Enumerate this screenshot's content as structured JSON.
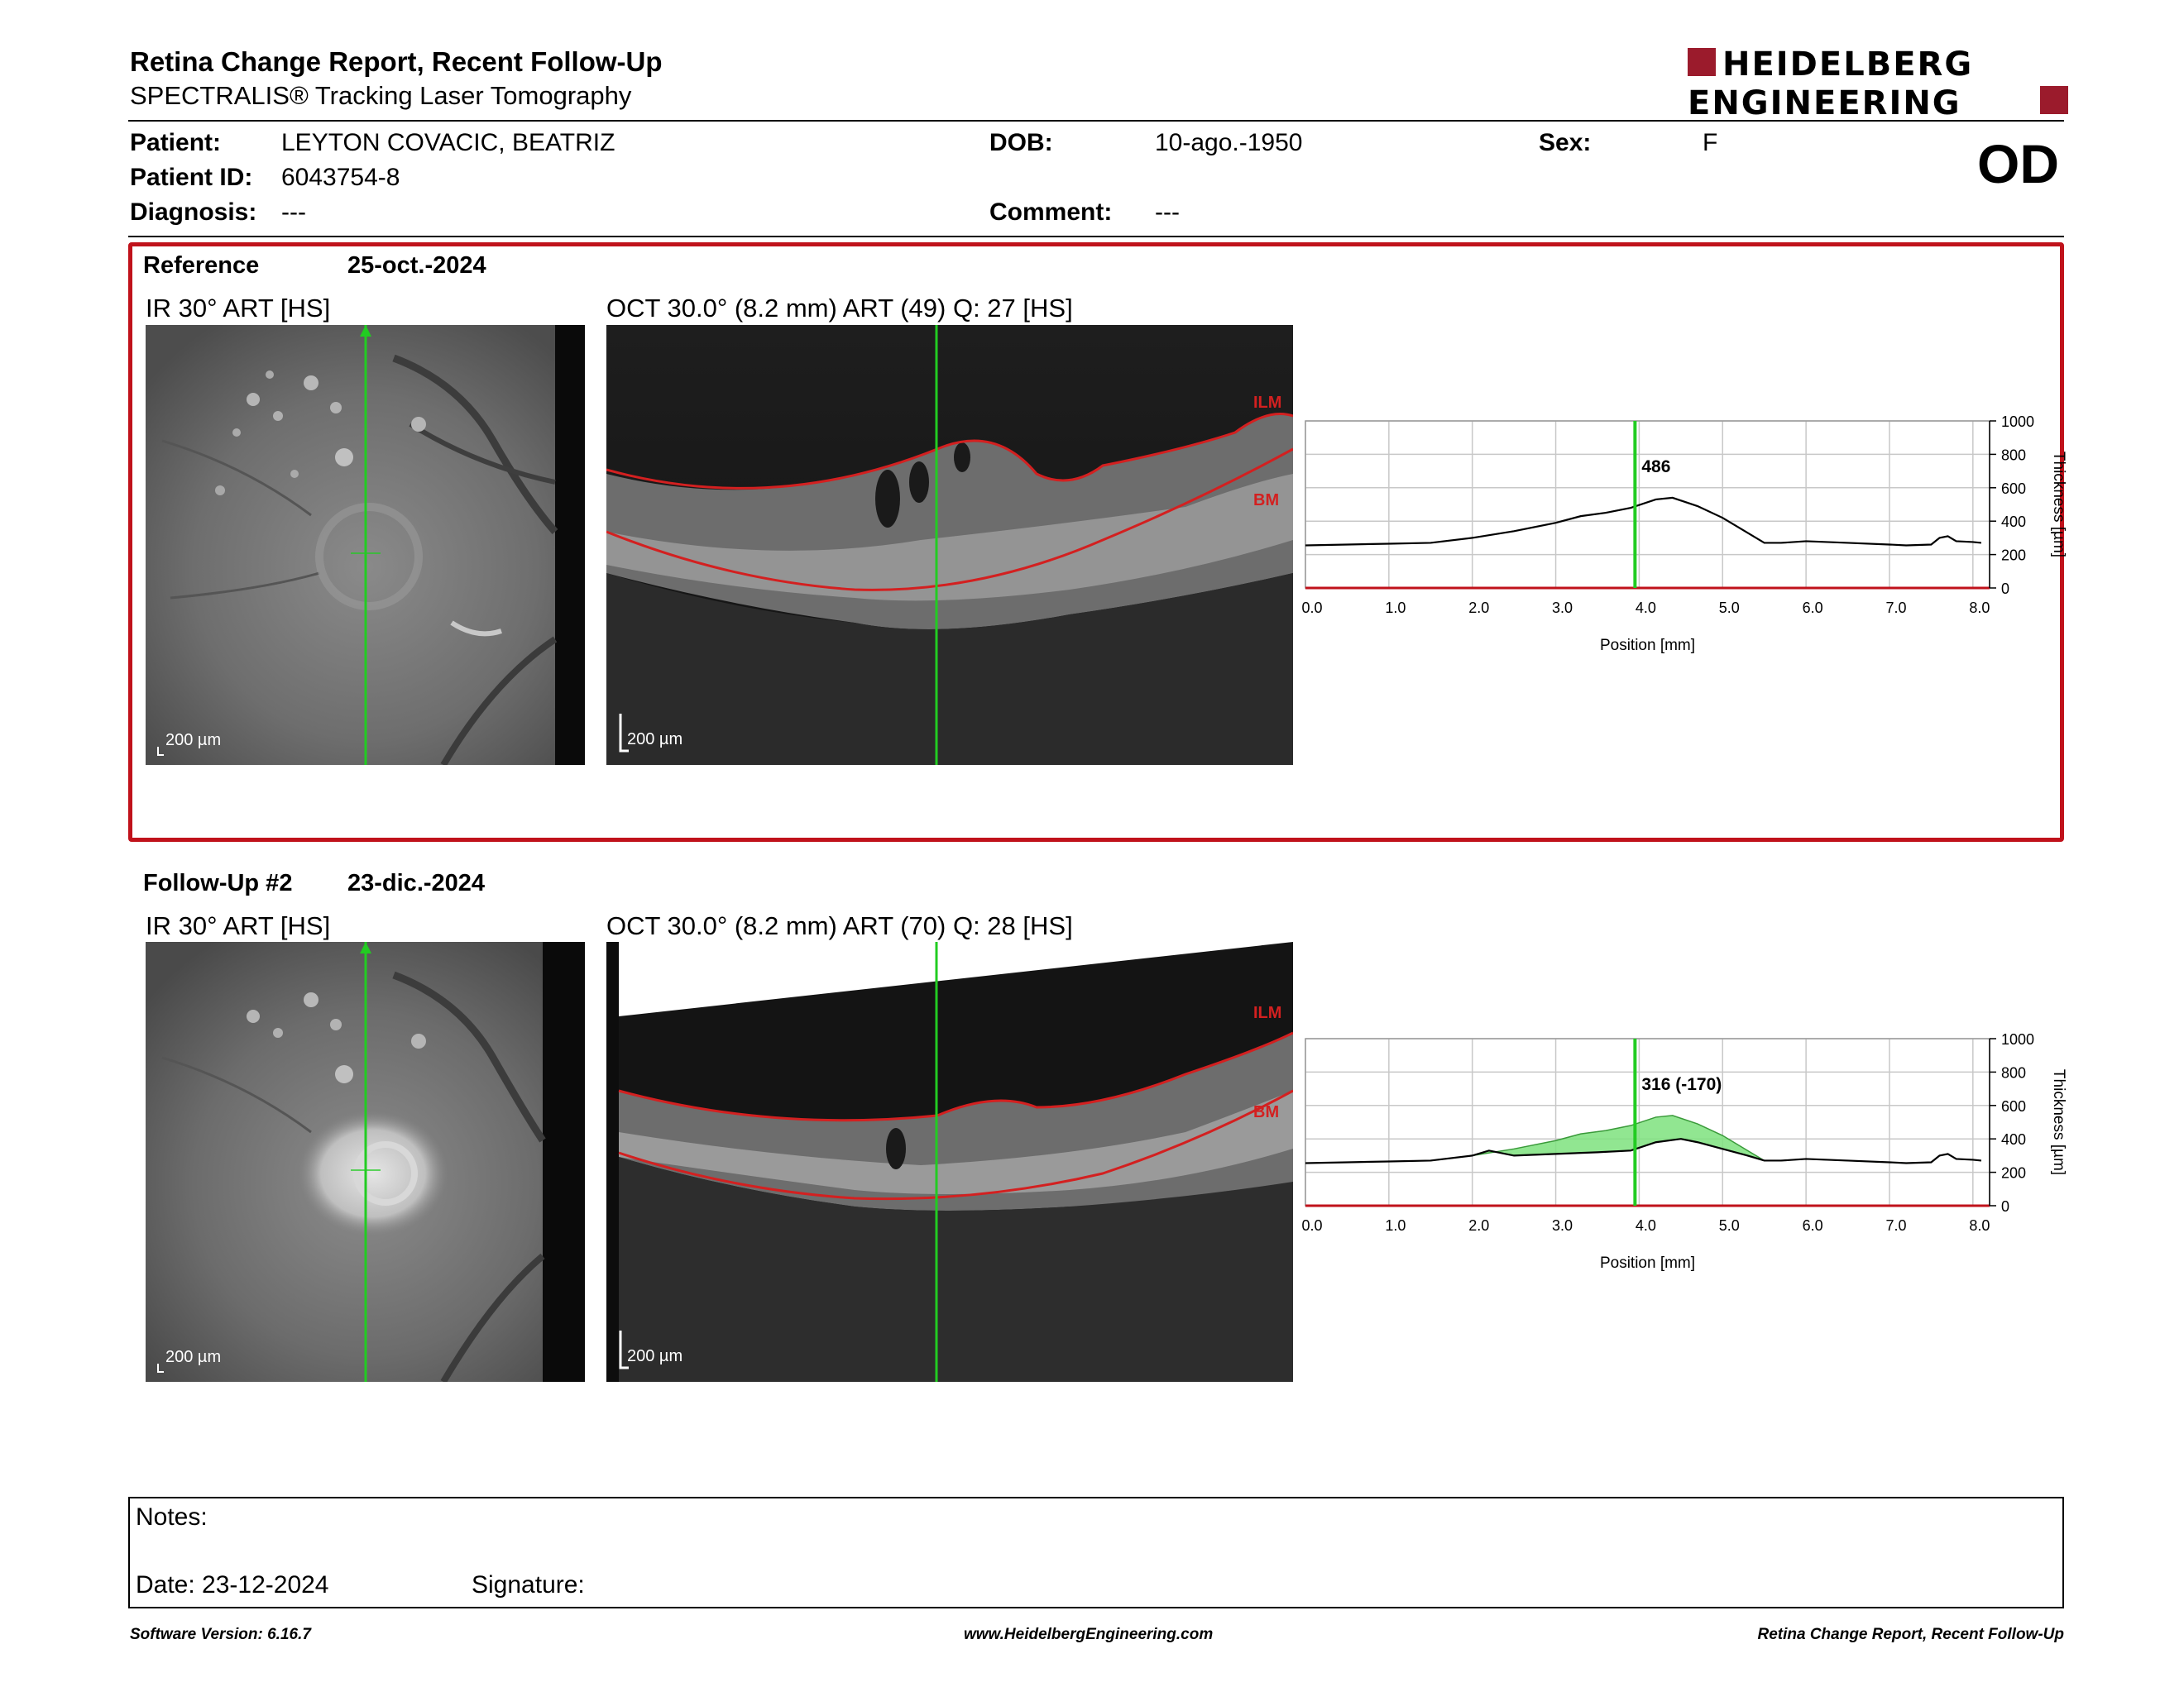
{
  "header": {
    "title": "Retina Change Report, Recent Follow-Up",
    "subtitle": "SPECTRALIS® Tracking Laser Tomography",
    "logo_line1": "HEIDELBERG",
    "logo_line2": "ENGINEERING"
  },
  "patient": {
    "patient_label": "Patient:",
    "patient_value": "LEYTON COVACIC, BEATRIZ",
    "id_label": "Patient ID:",
    "id_value": "6043754-8",
    "diagnosis_label": "Diagnosis:",
    "diagnosis_value": "---",
    "dob_label": "DOB:",
    "dob_value": "10-ago.-1950",
    "comment_label": "Comment:",
    "comment_value": "---",
    "sex_label": "Sex:",
    "sex_value": "F",
    "eye": "OD"
  },
  "reference": {
    "label": "Reference",
    "date": "25-oct.-2024",
    "ir_label": "IR 30° ART [HS]",
    "oct_label": "OCT 30.0° (8.2 mm) ART (49) Q: 27 [HS]",
    "ir_scalebar": "200 µm",
    "oct_scalebar": "200 µm",
    "ilm_label": "ILM",
    "bm_label": "BM"
  },
  "followup": {
    "label": "Follow-Up #2",
    "date": "23-dic.-2024",
    "ir_label": "IR 30° ART [HS]",
    "oct_label": "OCT 30.0° (8.2 mm) ART (70) Q: 28 [HS]",
    "ir_scalebar": "200 µm",
    "oct_scalebar": "200 µm",
    "ilm_label": "ILM",
    "bm_label": "BM"
  },
  "chart_data": [
    {
      "type": "line",
      "xlabel": "Position [mm]",
      "ylabel": "Thickness [µm]",
      "xlim": [
        0,
        8.2
      ],
      "ylim": [
        0,
        1000
      ],
      "xticks": [
        "0.0",
        "1.0",
        "2.0",
        "3.0",
        "4.0",
        "5.0",
        "6.0",
        "7.0",
        "8.0"
      ],
      "yticks": [
        "0",
        "200",
        "400",
        "600",
        "800",
        "1000"
      ],
      "grid": true,
      "cursor_x": 3.95,
      "cursor_label": "486",
      "series": [
        {
          "x": [
            0,
            0.5,
            1.0,
            1.5,
            2.0,
            2.5,
            3.0,
            3.3,
            3.6,
            3.9,
            4.2,
            4.4,
            4.7,
            5.0,
            5.3,
            5.5,
            5.7,
            6.0,
            6.5,
            7.0,
            7.2,
            7.5,
            7.6,
            7.7,
            7.8,
            8.0,
            8.1
          ],
          "values": [
            255,
            260,
            265,
            270,
            300,
            340,
            390,
            430,
            450,
            480,
            530,
            540,
            490,
            420,
            330,
            270,
            270,
            280,
            270,
            260,
            255,
            260,
            300,
            310,
            280,
            275,
            270
          ]
        }
      ]
    },
    {
      "type": "area",
      "xlabel": "Position [mm]",
      "ylabel": "Thickness [µm]",
      "xlim": [
        0,
        8.2
      ],
      "ylim": [
        0,
        1000
      ],
      "xticks": [
        "0.0",
        "1.0",
        "2.0",
        "3.0",
        "4.0",
        "5.0",
        "6.0",
        "7.0",
        "8.0"
      ],
      "yticks": [
        "0",
        "200",
        "400",
        "600",
        "800",
        "1000"
      ],
      "grid": true,
      "cursor_x": 3.95,
      "cursor_label": "316 (-170)",
      "series": [
        {
          "x": [
            0,
            0.5,
            1.0,
            1.5,
            2.0,
            2.2,
            2.5,
            3.0,
            3.5,
            3.9,
            4.2,
            4.5,
            4.7,
            5.0,
            5.3,
            5.5,
            5.7,
            6.0,
            6.5,
            7.0,
            7.2,
            7.5,
            7.6,
            7.7,
            7.8,
            8.0,
            8.1
          ],
          "values": [
            255,
            260,
            265,
            270,
            300,
            330,
            300,
            310,
            320,
            330,
            380,
            400,
            380,
            340,
            300,
            270,
            270,
            280,
            270,
            260,
            255,
            260,
            300,
            310,
            280,
            275,
            270
          ]
        },
        {
          "x": [
            0,
            0.5,
            1.0,
            1.5,
            2.0,
            2.5,
            3.0,
            3.3,
            3.6,
            3.9,
            4.2,
            4.4,
            4.7,
            5.0,
            5.3,
            5.5,
            5.7,
            6.0,
            6.5,
            7.0,
            7.2,
            7.5,
            7.6,
            7.7,
            7.8,
            8.0,
            8.1
          ],
          "values": [
            255,
            260,
            265,
            270,
            300,
            340,
            390,
            430,
            450,
            480,
            530,
            540,
            490,
            420,
            330,
            270,
            270,
            280,
            270,
            260,
            255,
            260,
            300,
            310,
            280,
            275,
            270
          ]
        }
      ]
    }
  ],
  "notes": {
    "notes_label": "Notes:",
    "date_label": "Date: 23-12-2024",
    "signature_label": "Signature:"
  },
  "footer": {
    "software": "Software Version: 6.16.7",
    "website": "www.HeidelbergEngineering.com",
    "report_name": "Retina Change Report, Recent Follow-Up"
  },
  "colors": {
    "accent_red": "#c0121b",
    "cursor_green": "#22cc22",
    "fill_green": "#7ee27e"
  }
}
